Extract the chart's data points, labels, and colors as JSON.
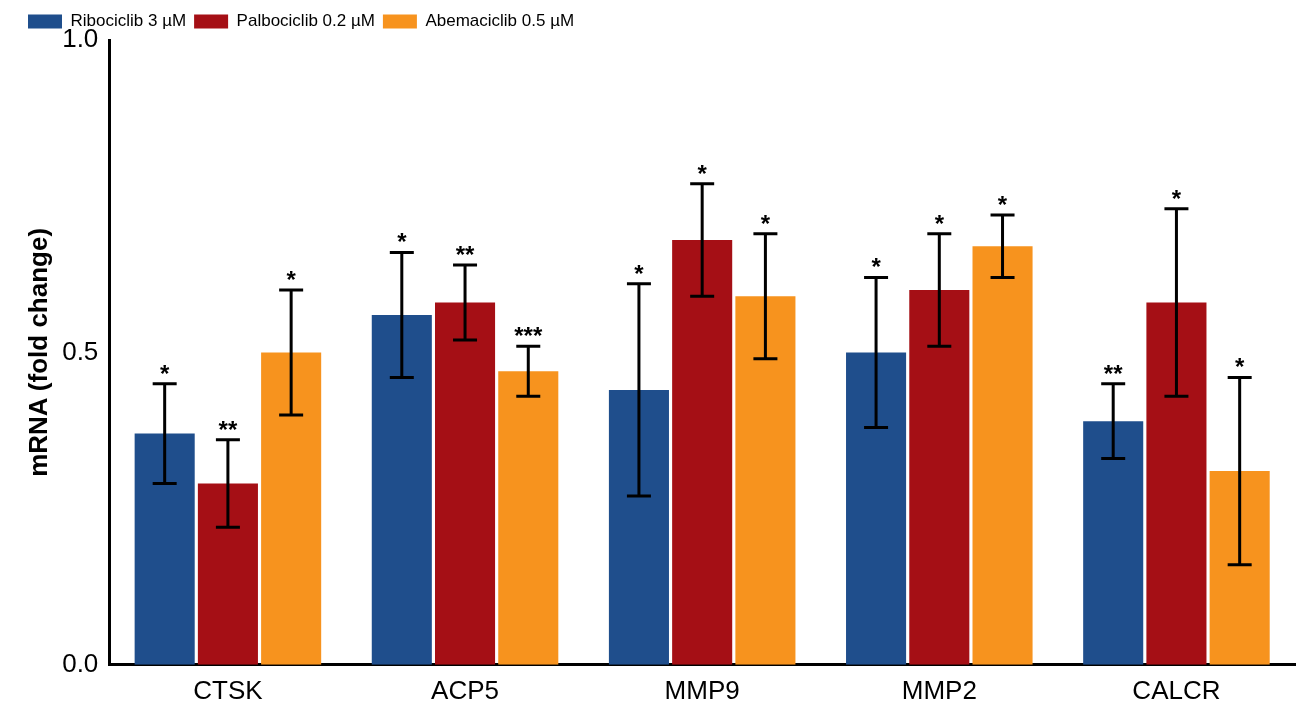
{
  "chart_data": {
    "type": "bar",
    "ylabel": "mRNA (fold change)",
    "categories": [
      "CTSK",
      "ACP5",
      "MMP9",
      "MMP2",
      "CALCR"
    ],
    "series": [
      {
        "name": "Ribociclib 3 µM",
        "color": "#1f4e8c",
        "values": [
          0.37,
          0.56,
          0.44,
          0.5,
          0.39
        ],
        "errors": [
          0.08,
          0.1,
          0.17,
          0.12,
          0.06
        ]
      },
      {
        "name": "Palbociclib 0.2 µM",
        "color": "#a50f15",
        "values": [
          0.29,
          0.58,
          0.68,
          0.6,
          0.58
        ],
        "errors": [
          0.07,
          0.06,
          0.09,
          0.09,
          0.15
        ]
      },
      {
        "name": "Abemaciclib 0.5 µM",
        "color": "#f7931e",
        "values": [
          0.5,
          0.47,
          0.59,
          0.67,
          0.31
        ],
        "errors": [
          0.1,
          0.04,
          0.1,
          0.05,
          0.15
        ]
      }
    ],
    "ylim": [
      0,
      1.0
    ],
    "yticks": [
      {
        "value": 0,
        "label": "0.0"
      },
      {
        "value": 0.5,
        "label": "0.5"
      },
      {
        "value": 1.0,
        "label": "1.0"
      }
    ],
    "grid": false,
    "legend": "top left",
    "annotations": [
      "*",
      "**",
      "*",
      "*",
      "**",
      "***",
      "*",
      "*",
      "*",
      "*",
      "*",
      "*",
      "**",
      "*",
      "*"
    ]
  }
}
